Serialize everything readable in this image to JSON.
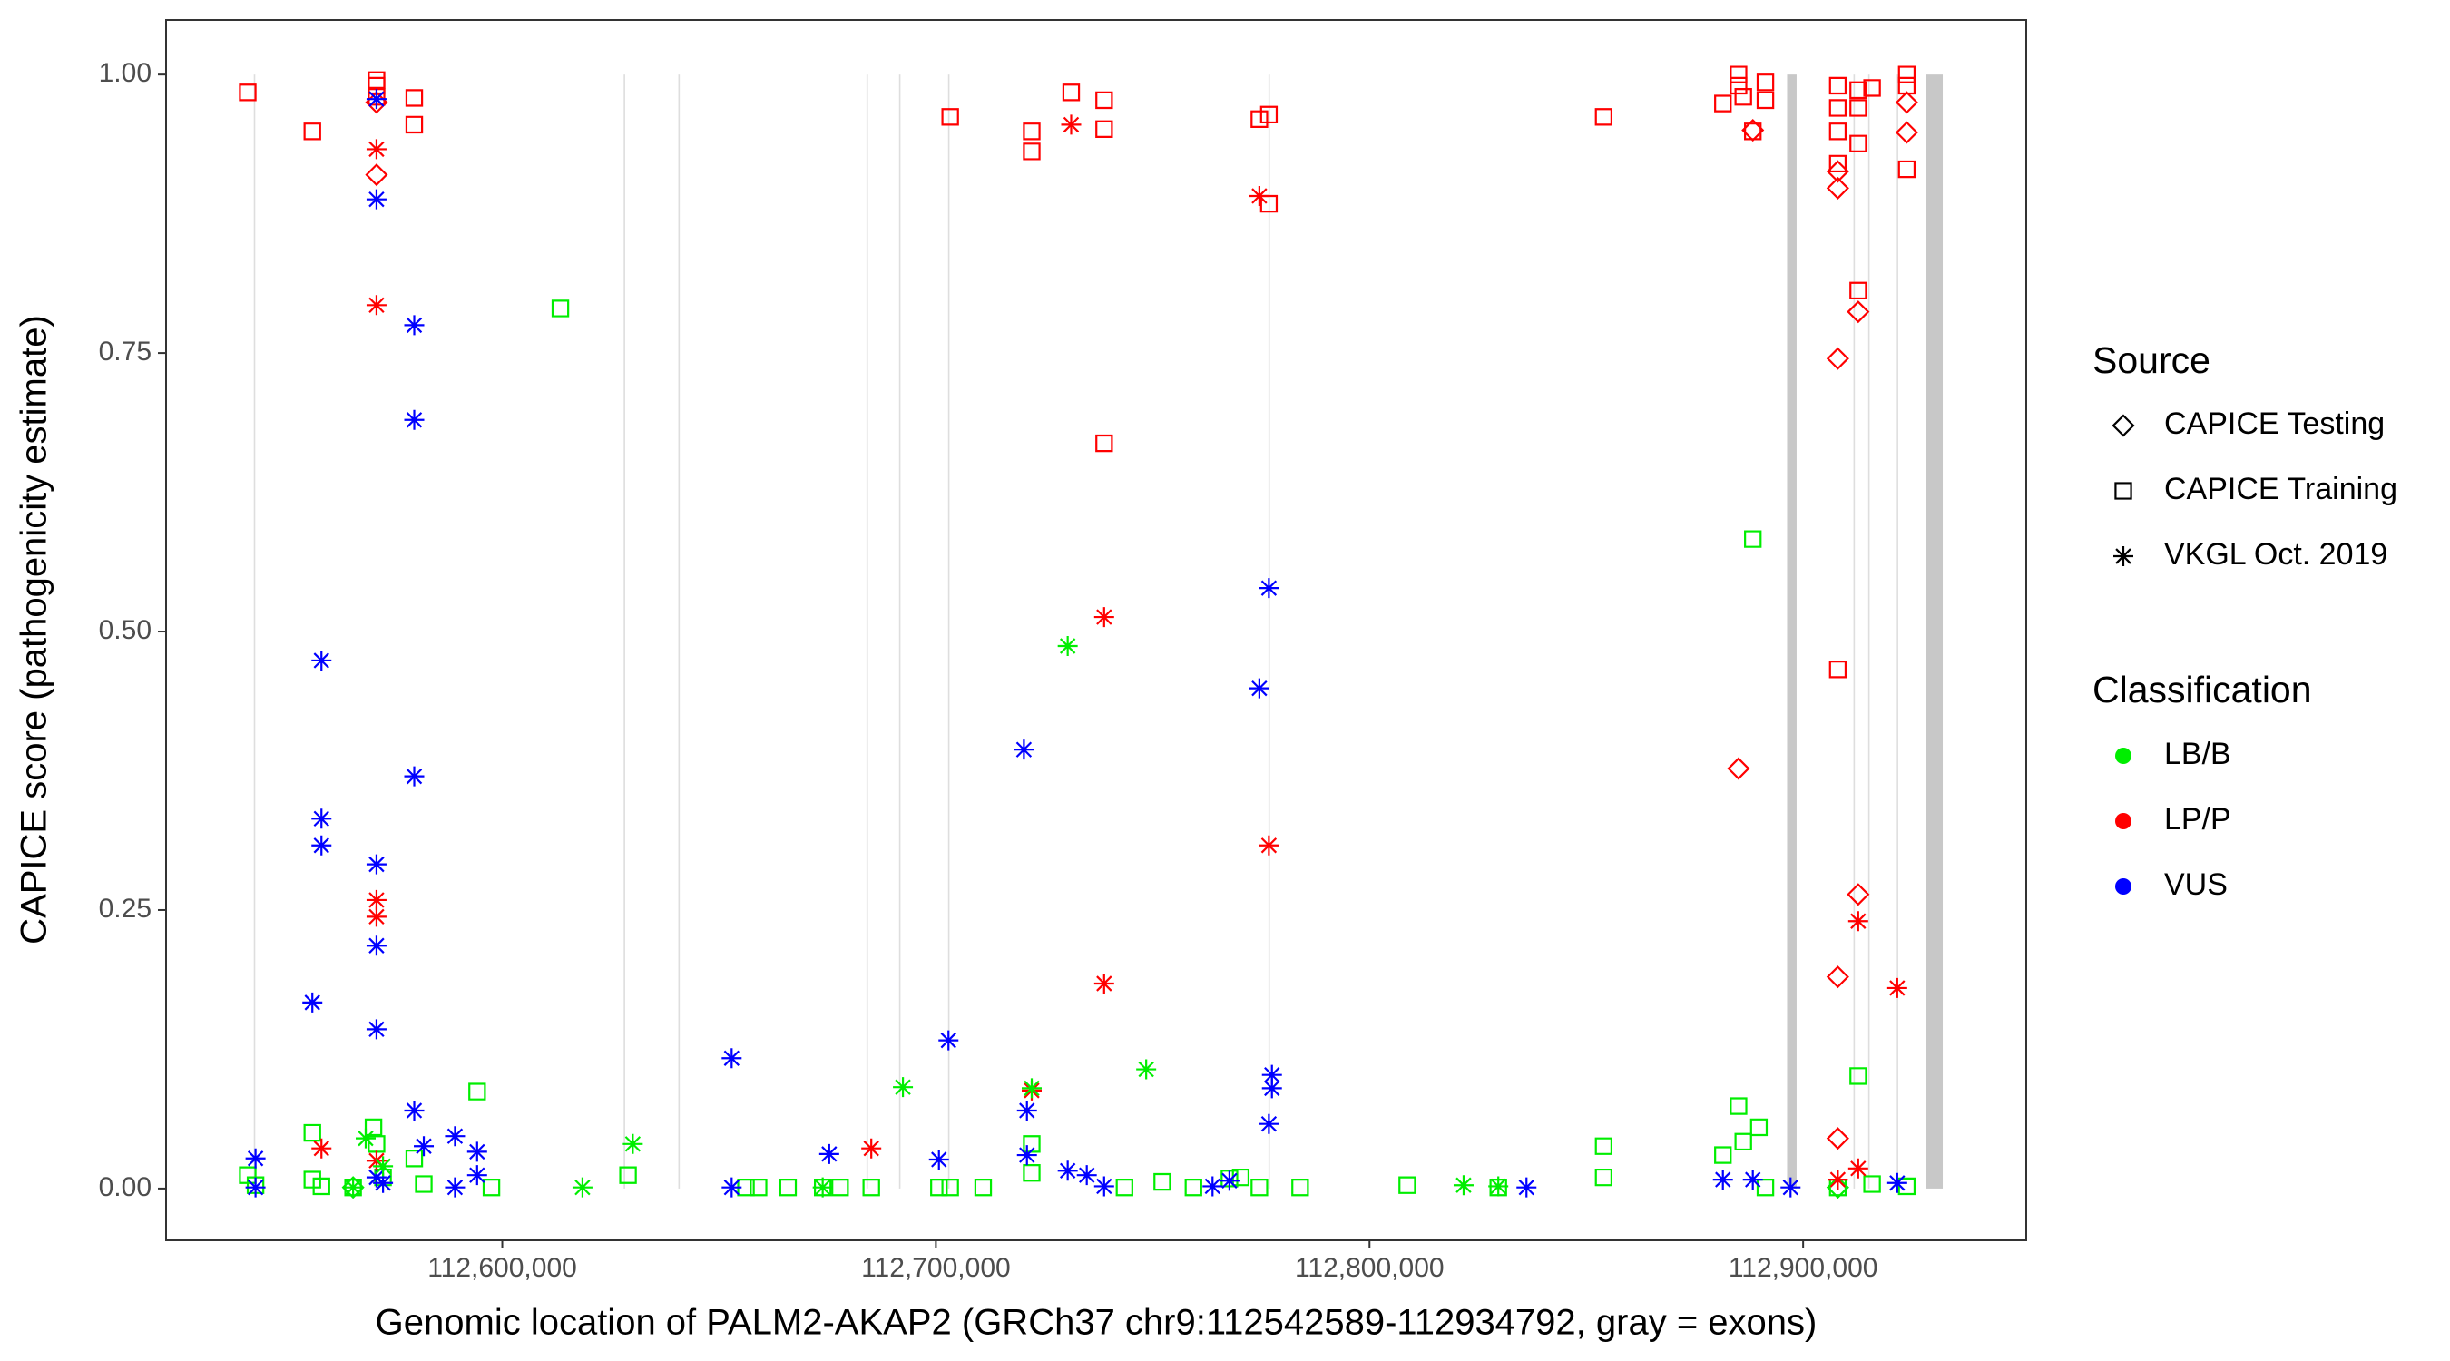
{
  "chart_data": {
    "type": "scatter",
    "xlabel": "Genomic location of PALM2-AKAP2 (GRCh37 chr9:112542589-112934792, gray = exons)",
    "ylabel": "CAPICE score (pathogenicity estimate)",
    "xlim": [
      112522464,
      112951449
    ],
    "ylim": [
      -0.0465,
      1.049
    ],
    "xticks": [
      {
        "value": 112600000,
        "label": "112,600,000"
      },
      {
        "value": 112700000,
        "label": "112,700,000"
      },
      {
        "value": 112800000,
        "label": "112,800,000"
      },
      {
        "value": 112900000,
        "label": "112,900,000"
      }
    ],
    "yticks": [
      {
        "value": 0,
        "label": "0.00"
      },
      {
        "value": 0.25,
        "label": "0.25"
      },
      {
        "value": 0.5,
        "label": "0.50"
      },
      {
        "value": 0.75,
        "label": "0.75"
      },
      {
        "value": 1,
        "label": "1.00"
      }
    ],
    "grid": false,
    "exon_color": "#c8c8c8",
    "exons": [
      [
        112542700,
        112542900
      ],
      [
        112628000,
        112628200
      ],
      [
        112640600,
        112640800
      ],
      [
        112684000,
        112684200
      ],
      [
        112691500,
        112691700
      ],
      [
        112702800,
        112703100
      ],
      [
        112776700,
        112776900
      ],
      [
        112896300,
        112898500
      ],
      [
        112911600,
        112911800
      ],
      [
        112915000,
        112915200
      ],
      [
        112921600,
        112921800
      ],
      [
        112928300,
        112932200
      ]
    ],
    "source_title": "Source",
    "classification_title": "Classification",
    "classifications": [
      {
        "name": "LB/B",
        "color": "#00ee00"
      },
      {
        "name": "LP/P",
        "color": "#ff0000"
      },
      {
        "name": "VUS",
        "color": "#0000ff"
      }
    ],
    "sources": [
      {
        "name": "CAPICE Testing",
        "shape": "diamond",
        "groups": [
          {
            "color": "#ff0000",
            "points": [
              [
                112571000,
                0.975
              ],
              [
                112571000,
                0.91
              ],
              [
                112885100,
                0.377
              ],
              [
                112888400,
                0.95
              ],
              [
                112908000,
                0.913
              ],
              [
                112908000,
                0.898
              ],
              [
                112908000,
                0.745
              ],
              [
                112908000,
                0.19
              ],
              [
                112908000,
                0.045
              ],
              [
                112912700,
                0.787
              ],
              [
                112912700,
                0.264
              ],
              [
                112923900,
                0.975
              ],
              [
                112923900,
                0.948
              ]
            ]
          },
          {
            "color": "#00ee00",
            "points": [
              [
                112565600,
                0.001
              ],
              [
                112908000,
                0.001
              ]
            ]
          }
        ]
      },
      {
        "name": "CAPICE Training",
        "shape": "square",
        "groups": [
          {
            "color": "#ff0000",
            "points": [
              [
                112541300,
                0.984
              ],
              [
                112556200,
                0.949
              ],
              [
                112571000,
                0.995
              ],
              [
                112571000,
                0.99
              ],
              [
                112571000,
                0.98
              ],
              [
                112579700,
                0.979
              ],
              [
                112579700,
                0.955
              ],
              [
                112703300,
                0.962
              ],
              [
                112722100,
                0.949
              ],
              [
                112722100,
                0.931
              ],
              [
                112731200,
                0.984
              ],
              [
                112738800,
                0.977
              ],
              [
                112738800,
                0.951
              ],
              [
                112738800,
                0.669
              ],
              [
                112774600,
                0.96
              ],
              [
                112776800,
                0.964
              ],
              [
                112776800,
                0.884
              ],
              [
                112854000,
                0.962
              ],
              [
                112881500,
                0.974
              ],
              [
                112885100,
                1.0
              ],
              [
                112885100,
                0.99
              ],
              [
                112886200,
                0.98
              ],
              [
                112888400,
                0.949
              ],
              [
                112891300,
                0.993
              ],
              [
                112891300,
                0.977
              ],
              [
                112908000,
                0.99
              ],
              [
                112908000,
                0.97
              ],
              [
                112908000,
                0.949
              ],
              [
                112908000,
                0.92
              ],
              [
                112908000,
                0.466
              ],
              [
                112912700,
                0.986
              ],
              [
                112912700,
                0.97
              ],
              [
                112912700,
                0.938
              ],
              [
                112912700,
                0.806
              ],
              [
                112915900,
                0.988
              ],
              [
                112923900,
                1.0
              ],
              [
                112923900,
                0.99
              ],
              [
                112923900,
                0.915
              ]
            ]
          },
          {
            "color": "#00ee00",
            "points": [
              [
                112541300,
                0.012
              ],
              [
                112543100,
                0.003
              ],
              [
                112556200,
                0.05
              ],
              [
                112556200,
                0.008
              ],
              [
                112558300,
                0.002
              ],
              [
                112565600,
                0.001
              ],
              [
                112570300,
                0.055
              ],
              [
                112571000,
                0.04
              ],
              [
                112572500,
                0.01
              ],
              [
                112579700,
                0.027
              ],
              [
                112581900,
                0.004
              ],
              [
                112594200,
                0.087
              ],
              [
                112597500,
                0.001
              ],
              [
                112613400,
                0.79
              ],
              [
                112629000,
                0.012
              ],
              [
                112656200,
                0.001
              ],
              [
                112659100,
                0.001
              ],
              [
                112665900,
                0.001
              ],
              [
                112673900,
                0.001
              ],
              [
                112677900,
                0.001
              ],
              [
                112685100,
                0.001
              ],
              [
                112700700,
                0.001
              ],
              [
                112703300,
                0.001
              ],
              [
                112710900,
                0.001
              ],
              [
                112722100,
                0.04
              ],
              [
                112722100,
                0.014
              ],
              [
                112743500,
                0.001
              ],
              [
                112752200,
                0.006
              ],
              [
                112759400,
                0.001
              ],
              [
                112767700,
                0.009
              ],
              [
                112770300,
                0.01
              ],
              [
                112774600,
                0.001
              ],
              [
                112784000,
                0.001
              ],
              [
                112808700,
                0.003
              ],
              [
                112829700,
                0.001
              ],
              [
                112854000,
                0.038
              ],
              [
                112854000,
                0.01
              ],
              [
                112881500,
                0.03
              ],
              [
                112885100,
                0.074
              ],
              [
                112886200,
                0.042
              ],
              [
                112888400,
                0.583
              ],
              [
                112889800,
                0.055
              ],
              [
                112891300,
                0.001
              ],
              [
                112908000,
                0.001
              ],
              [
                112912700,
                0.101
              ],
              [
                112915900,
                0.004
              ],
              [
                112923900,
                0.002
              ]
            ]
          }
        ]
      },
      {
        "name": "VKGL Oct. 2019",
        "shape": "asterisk",
        "groups": [
          {
            "color": "#0000ff",
            "points": [
              [
                112543100,
                0.027
              ],
              [
                112543100,
                0.001
              ],
              [
                112556200,
                0.167
              ],
              [
                112558300,
                0.474
              ],
              [
                112558300,
                0.332
              ],
              [
                112558300,
                0.308
              ],
              [
                112571000,
                0.978
              ],
              [
                112571000,
                0.888
              ],
              [
                112571000,
                0.291
              ],
              [
                112571000,
                0.218
              ],
              [
                112571000,
                0.143
              ],
              [
                112571000,
                0.01
              ],
              [
                112572500,
                0.005
              ],
              [
                112579700,
                0.775
              ],
              [
                112579700,
                0.69
              ],
              [
                112579700,
                0.37
              ],
              [
                112579700,
                0.07
              ],
              [
                112581900,
                0.038
              ],
              [
                112589100,
                0.047
              ],
              [
                112589100,
                0.001
              ],
              [
                112594200,
                0.033
              ],
              [
                112594200,
                0.012
              ],
              [
                112652900,
                0.117
              ],
              [
                112652900,
                0.001
              ],
              [
                112675400,
                0.031
              ],
              [
                112700700,
                0.026
              ],
              [
                112702900,
                0.133
              ],
              [
                112720300,
                0.394
              ],
              [
                112721000,
                0.07
              ],
              [
                112721000,
                0.03
              ],
              [
                112730400,
                0.016
              ],
              [
                112734800,
                0.012
              ],
              [
                112738800,
                0.002
              ],
              [
                112763800,
                0.002
              ],
              [
                112767700,
                0.007
              ],
              [
                112774600,
                0.449
              ],
              [
                112776800,
                0.539
              ],
              [
                112777500,
                0.102
              ],
              [
                112777500,
                0.09
              ],
              [
                112776800,
                0.058
              ],
              [
                112836200,
                0.001
              ],
              [
                112881500,
                0.008
              ],
              [
                112888400,
                0.008
              ],
              [
                112897100,
                0.001
              ],
              [
                112921700,
                0.005
              ]
            ]
          },
          {
            "color": "#ff0000",
            "points": [
              [
                112558300,
                0.036
              ],
              [
                112571000,
                0.933
              ],
              [
                112571000,
                0.793
              ],
              [
                112571000,
                0.259
              ],
              [
                112571000,
                0.244
              ],
              [
                112571000,
                0.025
              ],
              [
                112685100,
                0.036
              ],
              [
                112722100,
                0.088
              ],
              [
                112731200,
                0.955
              ],
              [
                112738800,
                0.513
              ],
              [
                112738800,
                0.184
              ],
              [
                112774600,
                0.891
              ],
              [
                112776800,
                0.308
              ],
              [
                112908000,
                0.008
              ],
              [
                112912700,
                0.24
              ],
              [
                112912700,
                0.018
              ],
              [
                112921700,
                0.18
              ]
            ]
          },
          {
            "color": "#00ee00",
            "points": [
              [
                112565600,
                0.001
              ],
              [
                112568500,
                0.045
              ],
              [
                112572500,
                0.02
              ],
              [
                112618500,
                0.001
              ],
              [
                112630100,
                0.04
              ],
              [
                112673900,
                0.001
              ],
              [
                112692400,
                0.091
              ],
              [
                112722100,
                0.09
              ],
              [
                112730400,
                0.487
              ],
              [
                112748500,
                0.107
              ],
              [
                112821700,
                0.003
              ],
              [
                112829700,
                0.002
              ]
            ]
          }
        ]
      }
    ]
  }
}
